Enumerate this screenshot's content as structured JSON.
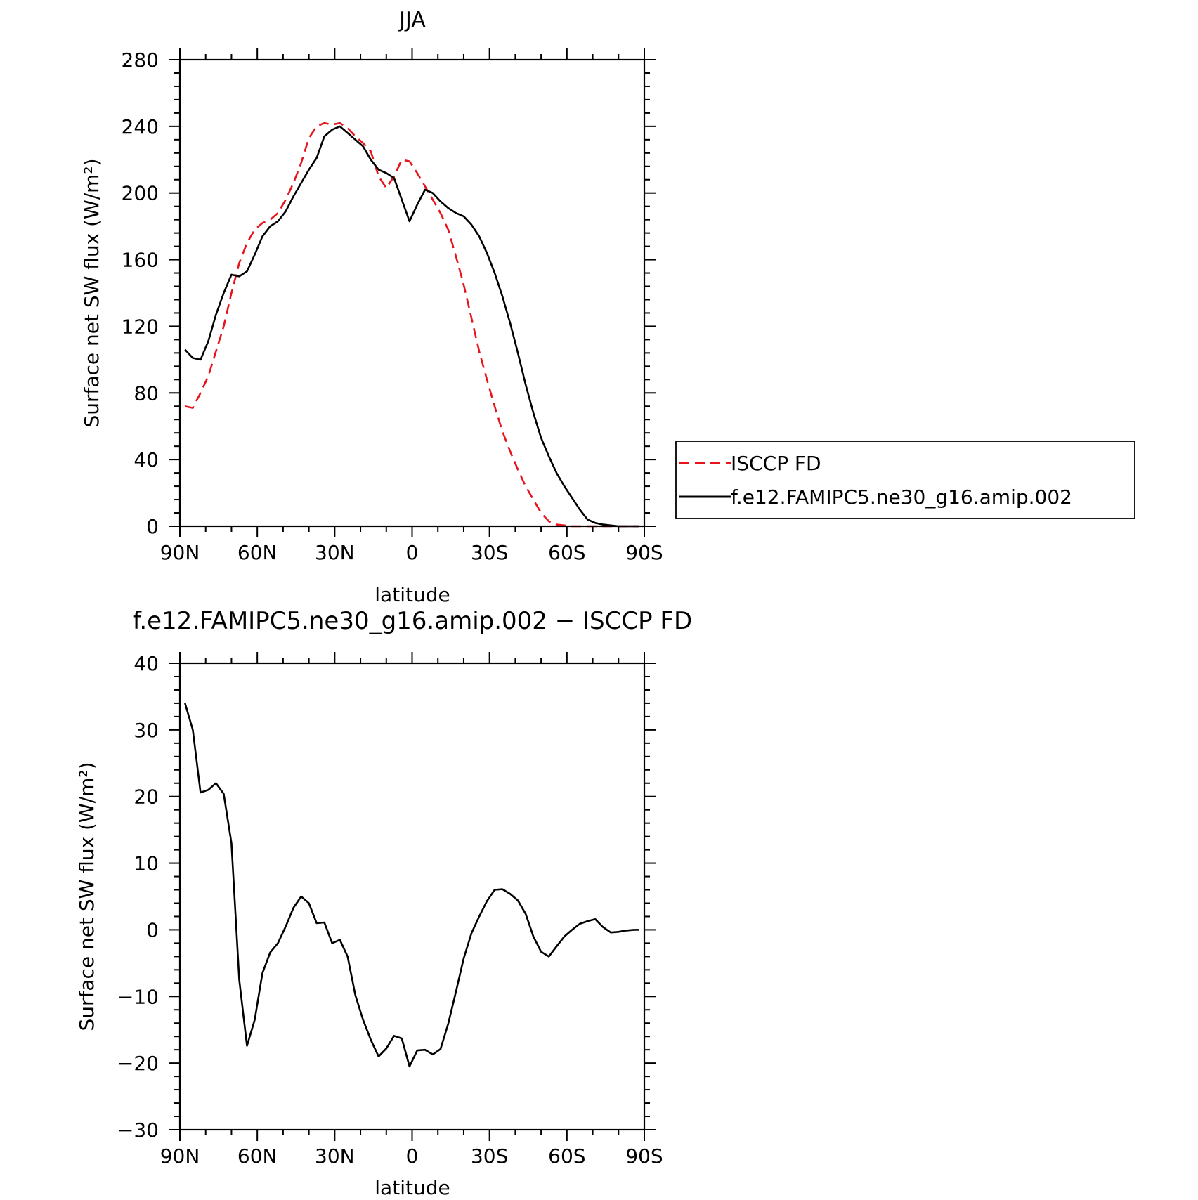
{
  "chart_data": [
    {
      "type": "line",
      "title": "JJA",
      "xlabel": "latitude",
      "ylabel": "Surface net SW flux (W/m²)",
      "xlim": [
        90,
        -90
      ],
      "ylim": [
        0,
        280
      ],
      "x_ticks": [
        90,
        60,
        30,
        0,
        -30,
        -60,
        -90
      ],
      "x_tick_labels": [
        "90N",
        "60N",
        "30N",
        "0",
        "30S",
        "60S",
        "90S"
      ],
      "y_ticks": [
        0,
        40,
        80,
        120,
        160,
        200,
        240,
        280
      ],
      "y_tick_labels": [
        "0",
        "40",
        "80",
        "120",
        "160",
        "200",
        "240",
        "280"
      ],
      "legend_position": "right",
      "series": [
        {
          "name": "ISCCP FD",
          "color": "#e8141c",
          "dash": "dashed",
          "x": [
            88,
            85,
            82,
            79,
            76,
            73,
            70,
            67,
            64,
            61,
            58,
            55,
            52,
            49,
            46,
            43,
            40,
            37,
            34,
            31,
            28,
            25,
            22,
            19,
            16,
            13,
            10,
            7,
            4,
            1,
            -2,
            -5,
            -8,
            -11,
            -14,
            -17,
            -20,
            -23,
            -26,
            -29,
            -32,
            -35,
            -38,
            -41,
            -44,
            -47,
            -50,
            -53,
            -56,
            -59,
            -62,
            -65,
            -68,
            -71,
            -74,
            -77,
            -80,
            -83,
            -86,
            -88
          ],
          "y": [
            72,
            71,
            80,
            90,
            105,
            120,
            140,
            158,
            170,
            178,
            182,
            184,
            188,
            196,
            206,
            218,
            233,
            240,
            242,
            241,
            242,
            239,
            234,
            230,
            225,
            210,
            203,
            210,
            220,
            219,
            212,
            204,
            196,
            188,
            178,
            162,
            145,
            125,
            105,
            88,
            72,
            57,
            45,
            34,
            24,
            16,
            8,
            3,
            1,
            0.5,
            0,
            0,
            0,
            0,
            0,
            0,
            0,
            0,
            0,
            0
          ]
        },
        {
          "name": "f.e12.FAMIPC5.ne30_g16.amip.002",
          "color": "#000000",
          "dash": "solid",
          "x": [
            88,
            85,
            82,
            79,
            76,
            73,
            70,
            67,
            64,
            61,
            58,
            55,
            52,
            49,
            46,
            43,
            40,
            37,
            34,
            31,
            28,
            25,
            22,
            19,
            16,
            13,
            10,
            7,
            4,
            1,
            -2,
            -5,
            -8,
            -11,
            -14,
            -17,
            -20,
            -23,
            -26,
            -29,
            -32,
            -35,
            -38,
            -41,
            -44,
            -47,
            -50,
            -53,
            -56,
            -59,
            -62,
            -65,
            -68,
            -71,
            -74,
            -77,
            -80,
            -83,
            -86,
            -88
          ],
          "y": [
            106,
            101,
            100,
            111,
            127,
            140,
            151,
            150,
            153,
            163,
            174,
            180,
            183,
            189,
            198,
            206,
            214,
            221,
            234,
            238,
            240,
            236,
            232,
            228,
            220,
            214,
            212,
            209,
            196,
            183,
            193,
            202,
            200,
            195,
            191,
            188,
            186,
            181,
            174,
            164,
            152,
            138,
            122,
            104,
            85,
            68,
            53,
            42,
            32,
            24,
            17,
            10,
            4,
            2,
            1,
            0.5,
            0,
            0,
            0,
            0
          ]
        }
      ]
    },
    {
      "type": "line",
      "title": "f.e12.FAMIPC5.ne30_g16.amip.002 − ISCCP FD",
      "xlabel": "latitude",
      "ylabel": "Surface net SW flux (W/m²)",
      "xlim": [
        90,
        -90
      ],
      "ylim": [
        -30,
        40
      ],
      "x_ticks": [
        90,
        60,
        30,
        0,
        -30,
        -60,
        -90
      ],
      "x_tick_labels": [
        "90N",
        "60N",
        "30N",
        "0",
        "30S",
        "60S",
        "90S"
      ],
      "y_ticks": [
        -30,
        -20,
        -10,
        0,
        10,
        20,
        30,
        40
      ],
      "y_tick_labels": [
        "−30",
        "−20",
        "−10",
        "0",
        "10",
        "20",
        "30",
        "40"
      ],
      "series": [
        {
          "color": "#000000",
          "dash": "solid",
          "x": [
            88,
            85,
            82,
            79,
            76,
            73,
            70,
            67,
            64,
            61,
            58,
            55,
            52,
            49,
            46,
            43,
            40,
            37,
            34,
            31,
            28,
            25,
            22,
            19,
            16,
            13,
            10,
            7,
            4,
            1,
            -2,
            -5,
            -8,
            -11,
            -14,
            -17,
            -20,
            -23,
            -26,
            -29,
            -32,
            -35,
            -38,
            -41,
            -44,
            -47,
            -50,
            -53,
            -56,
            -59,
            -62,
            -65,
            -68,
            -71,
            -74,
            -77,
            -80,
            -83,
            -86,
            -88
          ],
          "y": [
            34,
            30,
            20.6,
            21,
            22,
            20.4,
            13,
            -7.5,
            -17.4,
            -13.5,
            -6.5,
            -3.4,
            -2,
            0.5,
            3.3,
            5,
            4,
            1,
            1.1,
            -2,
            -1.5,
            -4,
            -9.8,
            -13.5,
            -16.5,
            -19,
            -17.8,
            -15.9,
            -16.3,
            -20.5,
            -18.1,
            -18.0,
            -18.7,
            -17.9,
            -14.1,
            -9.3,
            -4.3,
            -0.5,
            2,
            4.3,
            6,
            6.1,
            5.4,
            4.4,
            2.4,
            -1,
            -3.3,
            -4,
            -2.5,
            -1,
            0,
            0.9,
            1.3,
            1.6,
            0.4,
            -0.4,
            -0.3,
            -0.1,
            0,
            0
          ]
        }
      ]
    }
  ]
}
